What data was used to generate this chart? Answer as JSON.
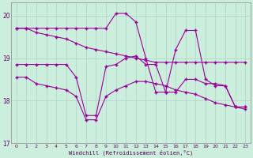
{
  "xlabel": "Windchill (Refroidissement éolien,°C)",
  "background_color": "#cceedd",
  "line_color": "#990099",
  "grid_color": "#aaddcc",
  "x": [
    0,
    1,
    2,
    3,
    4,
    5,
    6,
    7,
    8,
    9,
    10,
    11,
    12,
    13,
    14,
    15,
    16,
    17,
    18,
    19,
    20,
    21,
    22,
    23
  ],
  "line1": [
    19.7,
    19.7,
    19.6,
    19.55,
    19.5,
    19.45,
    19.35,
    19.25,
    19.2,
    19.15,
    19.1,
    19.05,
    19.0,
    18.95,
    18.9,
    18.9,
    18.9,
    18.9,
    18.9,
    18.9,
    18.9,
    18.9,
    18.9,
    18.9
  ],
  "line2": [
    18.85,
    18.85,
    18.85,
    18.85,
    18.85,
    18.85,
    18.55,
    17.65,
    17.65,
    18.8,
    18.85,
    19.0,
    19.05,
    18.85,
    18.85,
    18.2,
    18.2,
    18.5,
    18.5,
    18.4,
    18.4,
    18.35,
    17.85,
    17.85
  ],
  "line3": [
    19.7,
    19.7,
    19.7,
    19.7,
    19.7,
    19.7,
    19.7,
    19.7,
    19.7,
    19.7,
    20.05,
    20.05,
    19.85,
    19.0,
    18.2,
    18.2,
    19.2,
    19.65,
    19.65,
    18.5,
    18.35,
    18.35,
    17.85,
    17.85
  ],
  "line4": [
    18.55,
    18.55,
    18.4,
    18.35,
    18.3,
    18.25,
    18.1,
    17.55,
    17.55,
    18.1,
    18.25,
    18.35,
    18.45,
    18.45,
    18.4,
    18.35,
    18.25,
    18.2,
    18.15,
    18.05,
    17.95,
    17.9,
    17.85,
    17.8
  ],
  "ylim": [
    17.0,
    20.3
  ],
  "xlim": [
    -0.5,
    23.5
  ],
  "yticks": [
    17,
    18,
    19,
    20
  ],
  "xticks": [
    0,
    1,
    2,
    3,
    4,
    5,
    6,
    7,
    8,
    9,
    10,
    11,
    12,
    13,
    14,
    15,
    16,
    17,
    18,
    19,
    20,
    21,
    22,
    23
  ]
}
